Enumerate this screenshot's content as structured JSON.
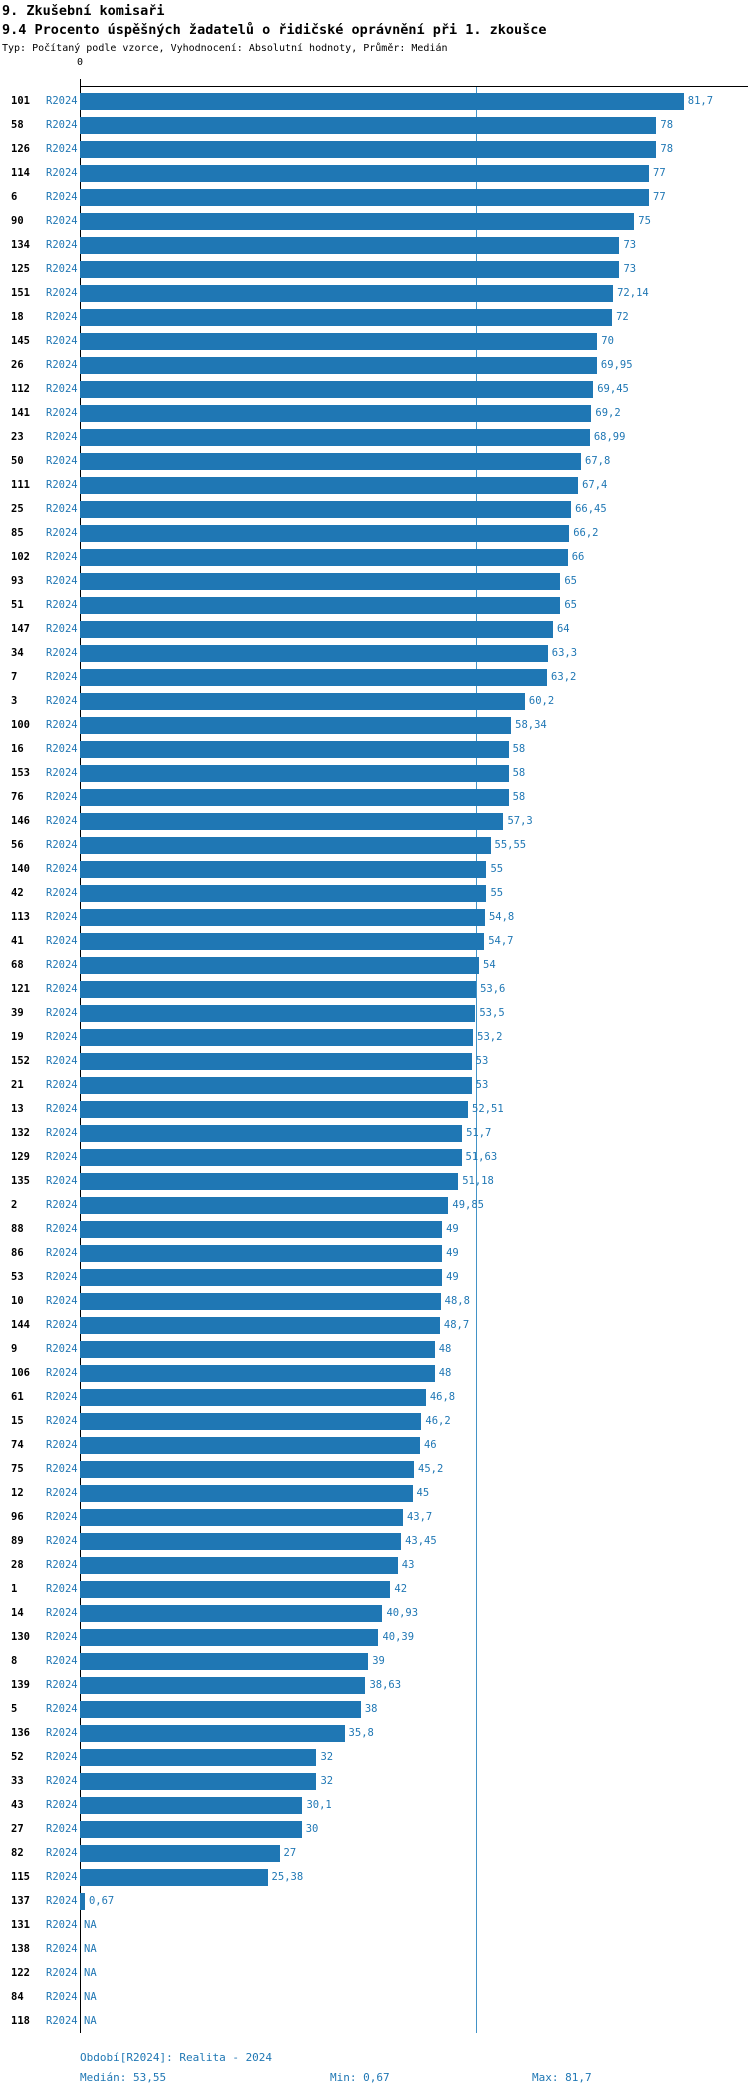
{
  "header": {
    "title1": "9. Zkušební komisaři",
    "title2": "9.4 Procento úspěšných žadatelů o řidičské oprávnění při 1. zkoušce",
    "subtitle": "Typ: Počítaný podle vzorce, Vyhodnocení: Absolutní hodnoty, Průměr: Medián"
  },
  "colors": {
    "bar": "#1F77B4",
    "blue_text": "#1F77B4",
    "median_line": "#4393C7",
    "axis": "#000000"
  },
  "chart_data": {
    "type": "bar",
    "orientation": "horizontal",
    "title": "9.4 Procento úspěšných žadatelů o řidičské oprávnění při 1. zkoušce",
    "series_label": "R2024",
    "x_origin_label": "0",
    "xlim": [
      0,
      90
    ],
    "grid": false,
    "median": 53.55,
    "min": 0.67,
    "max": 81.7,
    "rows": [
      {
        "label": "101",
        "value": 81.7,
        "display": "81,7"
      },
      {
        "label": "58",
        "value": 78,
        "display": "78"
      },
      {
        "label": "126",
        "value": 78,
        "display": "78"
      },
      {
        "label": "114",
        "value": 77,
        "display": "77"
      },
      {
        "label": "6",
        "value": 77,
        "display": "77"
      },
      {
        "label": "90",
        "value": 75,
        "display": "75"
      },
      {
        "label": "134",
        "value": 73,
        "display": "73"
      },
      {
        "label": "125",
        "value": 73,
        "display": "73"
      },
      {
        "label": "151",
        "value": 72.14,
        "display": "72,14"
      },
      {
        "label": "18",
        "value": 72,
        "display": "72"
      },
      {
        "label": "145",
        "value": 70,
        "display": "70"
      },
      {
        "label": "26",
        "value": 69.95,
        "display": "69,95"
      },
      {
        "label": "112",
        "value": 69.45,
        "display": "69,45"
      },
      {
        "label": "141",
        "value": 69.2,
        "display": "69,2"
      },
      {
        "label": "23",
        "value": 68.99,
        "display": "68,99"
      },
      {
        "label": "50",
        "value": 67.8,
        "display": "67,8"
      },
      {
        "label": "111",
        "value": 67.4,
        "display": "67,4"
      },
      {
        "label": "25",
        "value": 66.45,
        "display": "66,45"
      },
      {
        "label": "85",
        "value": 66.2,
        "display": "66,2"
      },
      {
        "label": "102",
        "value": 66,
        "display": "66"
      },
      {
        "label": "93",
        "value": 65,
        "display": "65"
      },
      {
        "label": "51",
        "value": 65,
        "display": "65"
      },
      {
        "label": "147",
        "value": 64,
        "display": "64"
      },
      {
        "label": "34",
        "value": 63.3,
        "display": "63,3"
      },
      {
        "label": "7",
        "value": 63.2,
        "display": "63,2"
      },
      {
        "label": "3",
        "value": 60.2,
        "display": "60,2"
      },
      {
        "label": "100",
        "value": 58.34,
        "display": "58,34"
      },
      {
        "label": "16",
        "value": 58,
        "display": "58"
      },
      {
        "label": "153",
        "value": 58,
        "display": "58"
      },
      {
        "label": "76",
        "value": 58,
        "display": "58"
      },
      {
        "label": "146",
        "value": 57.3,
        "display": "57,3"
      },
      {
        "label": "56",
        "value": 55.55,
        "display": "55,55"
      },
      {
        "label": "140",
        "value": 55,
        "display": "55"
      },
      {
        "label": "42",
        "value": 55,
        "display": "55"
      },
      {
        "label": "113",
        "value": 54.8,
        "display": "54,8"
      },
      {
        "label": "41",
        "value": 54.7,
        "display": "54,7"
      },
      {
        "label": "68",
        "value": 54,
        "display": "54"
      },
      {
        "label": "121",
        "value": 53.6,
        "display": "53,6"
      },
      {
        "label": "39",
        "value": 53.5,
        "display": "53,5"
      },
      {
        "label": "19",
        "value": 53.2,
        "display": "53,2"
      },
      {
        "label": "152",
        "value": 53,
        "display": "53"
      },
      {
        "label": "21",
        "value": 53,
        "display": "53"
      },
      {
        "label": "13",
        "value": 52.51,
        "display": "52,51"
      },
      {
        "label": "132",
        "value": 51.7,
        "display": "51,7"
      },
      {
        "label": "129",
        "value": 51.63,
        "display": "51,63"
      },
      {
        "label": "135",
        "value": 51.18,
        "display": "51,18"
      },
      {
        "label": "2",
        "value": 49.85,
        "display": "49,85"
      },
      {
        "label": "88",
        "value": 49,
        "display": "49"
      },
      {
        "label": "86",
        "value": 49,
        "display": "49"
      },
      {
        "label": "53",
        "value": 49,
        "display": "49"
      },
      {
        "label": "10",
        "value": 48.8,
        "display": "48,8"
      },
      {
        "label": "144",
        "value": 48.7,
        "display": "48,7"
      },
      {
        "label": "9",
        "value": 48,
        "display": "48"
      },
      {
        "label": "106",
        "value": 48,
        "display": "48"
      },
      {
        "label": "61",
        "value": 46.8,
        "display": "46,8"
      },
      {
        "label": "15",
        "value": 46.2,
        "display": "46,2"
      },
      {
        "label": "74",
        "value": 46,
        "display": "46"
      },
      {
        "label": "75",
        "value": 45.2,
        "display": "45,2"
      },
      {
        "label": "12",
        "value": 45,
        "display": "45"
      },
      {
        "label": "96",
        "value": 43.7,
        "display": "43,7"
      },
      {
        "label": "89",
        "value": 43.45,
        "display": "43,45"
      },
      {
        "label": "28",
        "value": 43,
        "display": "43"
      },
      {
        "label": "1",
        "value": 42,
        "display": "42"
      },
      {
        "label": "14",
        "value": 40.93,
        "display": "40,93"
      },
      {
        "label": "130",
        "value": 40.39,
        "display": "40,39"
      },
      {
        "label": "8",
        "value": 39,
        "display": "39"
      },
      {
        "label": "139",
        "value": 38.63,
        "display": "38,63"
      },
      {
        "label": "5",
        "value": 38,
        "display": "38"
      },
      {
        "label": "136",
        "value": 35.8,
        "display": "35,8"
      },
      {
        "label": "52",
        "value": 32,
        "display": "32"
      },
      {
        "label": "33",
        "value": 32,
        "display": "32"
      },
      {
        "label": "43",
        "value": 30.1,
        "display": "30,1"
      },
      {
        "label": "27",
        "value": 30,
        "display": "30"
      },
      {
        "label": "82",
        "value": 27,
        "display": "27"
      },
      {
        "label": "115",
        "value": 25.38,
        "display": "25,38"
      },
      {
        "label": "137",
        "value": 0.67,
        "display": "0,67"
      },
      {
        "label": "131",
        "value": null,
        "display": "NA"
      },
      {
        "label": "138",
        "value": null,
        "display": "NA"
      },
      {
        "label": "122",
        "value": null,
        "display": "NA"
      },
      {
        "label": "84",
        "value": null,
        "display": "NA"
      },
      {
        "label": "118",
        "value": null,
        "display": "NA"
      }
    ]
  },
  "footer": {
    "period": "Období[R2024]: Realita - 2024",
    "median": "Medián: 53,55",
    "min": "Min: 0,67",
    "max": "Max: 81,7"
  }
}
